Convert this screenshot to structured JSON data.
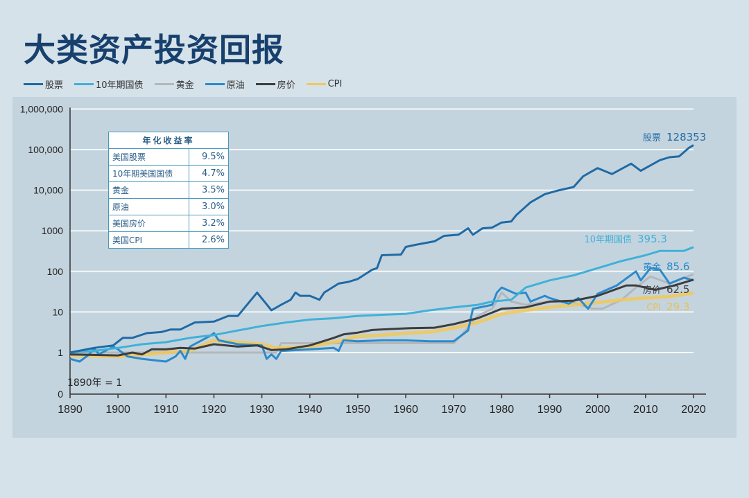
{
  "title": "大类资产投资回报",
  "table": {
    "header": "年化收益率",
    "rows": [
      {
        "label": "美国股票",
        "value": "9.5%"
      },
      {
        "label": "10年期美国国债",
        "value": "4.7%"
      },
      {
        "label": "黄金",
        "value": "3.5%"
      },
      {
        "label": "原油",
        "value": "3.0%"
      },
      {
        "label": "美国房价",
        "value": "3.2%"
      },
      {
        "label": "美国CPI",
        "value": "2.6%"
      }
    ]
  },
  "chart_data": {
    "type": "line",
    "yscale": "log",
    "note": "1890年 = 1",
    "legend_position": "top-left",
    "grid": true,
    "xlim": [
      1890,
      2020
    ],
    "x_ticks": [
      "1890",
      "1900",
      "1910",
      "1920",
      "1930",
      "1940",
      "1950",
      "1960",
      "1970",
      "1980",
      "1990",
      "2000",
      "2010",
      "2020"
    ],
    "y_ticks": [
      "0",
      "1",
      "10",
      "100",
      "1000",
      "10,000",
      "100,000",
      "1,000,000"
    ],
    "series": [
      {
        "name": "股票",
        "color": "#1f6aa5",
        "end_label": "128353",
        "points": [
          [
            1890,
            1
          ],
          [
            1895,
            1.3
          ],
          [
            1899,
            1.5
          ],
          [
            1901,
            2.3
          ],
          [
            1903,
            2.3
          ],
          [
            1906,
            3
          ],
          [
            1909,
            3.2
          ],
          [
            1911,
            3.7
          ],
          [
            1913,
            3.7
          ],
          [
            1916,
            5.5
          ],
          [
            1920,
            5.8
          ],
          [
            1923,
            8
          ],
          [
            1925,
            8
          ],
          [
            1929,
            30
          ],
          [
            1932,
            11
          ],
          [
            1934,
            15
          ],
          [
            1936,
            20
          ],
          [
            1937,
            30
          ],
          [
            1938,
            25
          ],
          [
            1940,
            25
          ],
          [
            1942,
            20
          ],
          [
            1943,
            30
          ],
          [
            1946,
            50
          ],
          [
            1948,
            55
          ],
          [
            1950,
            65
          ],
          [
            1953,
            110
          ],
          [
            1954,
            120
          ],
          [
            1955,
            250
          ],
          [
            1959,
            260
          ],
          [
            1960,
            400
          ],
          [
            1962,
            450
          ],
          [
            1966,
            550
          ],
          [
            1968,
            750
          ],
          [
            1971,
            800
          ],
          [
            1973,
            1150
          ],
          [
            1974,
            800
          ],
          [
            1976,
            1150
          ],
          [
            1978,
            1200
          ],
          [
            1980,
            1600
          ],
          [
            1982,
            1700
          ],
          [
            1983,
            2400
          ],
          [
            1986,
            5000
          ],
          [
            1989,
            8000
          ],
          [
            1992,
            10000
          ],
          [
            1995,
            12000
          ],
          [
            1997,
            22000
          ],
          [
            2000,
            35000
          ],
          [
            2003,
            25000
          ],
          [
            2007,
            45000
          ],
          [
            2009,
            30000
          ],
          [
            2013,
            55000
          ],
          [
            2015,
            65000
          ],
          [
            2017,
            68000
          ],
          [
            2019,
            110000
          ],
          [
            2020,
            128353
          ]
        ]
      },
      {
        "name": "10年期国债",
        "color": "#3fb1d9",
        "end_label": "395.3",
        "points": [
          [
            1890,
            1
          ],
          [
            1895,
            1.1
          ],
          [
            1900,
            1.3
          ],
          [
            1905,
            1.6
          ],
          [
            1910,
            1.8
          ],
          [
            1915,
            2.3
          ],
          [
            1920,
            2.7
          ],
          [
            1925,
            3.5
          ],
          [
            1930,
            4.5
          ],
          [
            1935,
            5.5
          ],
          [
            1940,
            6.5
          ],
          [
            1945,
            7
          ],
          [
            1950,
            8
          ],
          [
            1955,
            8.5
          ],
          [
            1960,
            9
          ],
          [
            1965,
            11
          ],
          [
            1970,
            13
          ],
          [
            1975,
            15
          ],
          [
            1978,
            18
          ],
          [
            1982,
            20
          ],
          [
            1985,
            40
          ],
          [
            1990,
            60
          ],
          [
            1995,
            80
          ],
          [
            2000,
            120
          ],
          [
            2005,
            180
          ],
          [
            2010,
            250
          ],
          [
            2013,
            320
          ],
          [
            2018,
            320
          ],
          [
            2020,
            395.3
          ]
        ]
      },
      {
        "name": "黄金",
        "color": "#b3b7bb",
        "end_label": "85.6",
        "points": [
          [
            1890,
            1
          ],
          [
            1933,
            1
          ],
          [
            1934,
            1.7
          ],
          [
            1968,
            1.7
          ],
          [
            1970,
            1.7
          ],
          [
            1972,
            3
          ],
          [
            1975,
            8
          ],
          [
            1978,
            12
          ],
          [
            1980,
            30
          ],
          [
            1982,
            18
          ],
          [
            1985,
            15
          ],
          [
            1990,
            18
          ],
          [
            1995,
            17
          ],
          [
            1999,
            12
          ],
          [
            2001,
            12
          ],
          [
            2005,
            20
          ],
          [
            2008,
            40
          ],
          [
            2011,
            75
          ],
          [
            2015,
            50
          ],
          [
            2020,
            85.6
          ]
        ]
      },
      {
        "name": "原油",
        "color": "#2a8acb",
        "end_label": "",
        "points": [
          [
            1890,
            0.7
          ],
          [
            1892,
            0.6
          ],
          [
            1894,
            0.9
          ],
          [
            1895,
            1.3
          ],
          [
            1896,
            0.9
          ],
          [
            1899,
            1.4
          ],
          [
            1900,
            1.2
          ],
          [
            1902,
            0.8
          ],
          [
            1905,
            0.7
          ],
          [
            1910,
            0.6
          ],
          [
            1912,
            0.8
          ],
          [
            1913,
            1.1
          ],
          [
            1914,
            0.7
          ],
          [
            1915,
            1.4
          ],
          [
            1919,
            2.5
          ],
          [
            1920,
            3
          ],
          [
            1921,
            2
          ],
          [
            1925,
            1.6
          ],
          [
            1930,
            1.5
          ],
          [
            1931,
            0.7
          ],
          [
            1932,
            0.9
          ],
          [
            1933,
            0.7
          ],
          [
            1934,
            1.1
          ],
          [
            1940,
            1.2
          ],
          [
            1945,
            1.3
          ],
          [
            1946,
            1.1
          ],
          [
            1947,
            2
          ],
          [
            1950,
            1.9
          ],
          [
            1955,
            2
          ],
          [
            1960,
            2
          ],
          [
            1965,
            1.9
          ],
          [
            1970,
            1.9
          ],
          [
            1973,
            3.5
          ],
          [
            1974,
            12
          ],
          [
            1978,
            15
          ],
          [
            1979,
            30
          ],
          [
            1980,
            40
          ],
          [
            1983,
            28
          ],
          [
            1985,
            30
          ],
          [
            1986,
            18
          ],
          [
            1989,
            25
          ],
          [
            1990,
            22
          ],
          [
            1994,
            16
          ],
          [
            1996,
            22
          ],
          [
            1998,
            12
          ],
          [
            2000,
            28
          ],
          [
            2004,
            45
          ],
          [
            2008,
            100
          ],
          [
            2009,
            60
          ],
          [
            2011,
            120
          ],
          [
            2013,
            110
          ],
          [
            2015,
            50
          ],
          [
            2018,
            70
          ],
          [
            2020,
            60
          ]
        ]
      },
      {
        "name": "房价",
        "color": "#3d3d3f",
        "end_label": "62.5",
        "points": [
          [
            1890,
            0.9
          ],
          [
            1900,
            0.85
          ],
          [
            1903,
            1.0
          ],
          [
            1905,
            0.9
          ],
          [
            1907,
            1.2
          ],
          [
            1910,
            1.2
          ],
          [
            1913,
            1.3
          ],
          [
            1916,
            1.25
          ],
          [
            1920,
            1.6
          ],
          [
            1925,
            1.4
          ],
          [
            1929,
            1.5
          ],
          [
            1932,
            1.15
          ],
          [
            1935,
            1.2
          ],
          [
            1940,
            1.5
          ],
          [
            1945,
            2.3
          ],
          [
            1947,
            2.8
          ],
          [
            1950,
            3.1
          ],
          [
            1953,
            3.6
          ],
          [
            1957,
            3.8
          ],
          [
            1961,
            4
          ],
          [
            1966,
            4.1
          ],
          [
            1970,
            5
          ],
          [
            1975,
            7
          ],
          [
            1980,
            12
          ],
          [
            1985,
            13
          ],
          [
            1990,
            18
          ],
          [
            1995,
            19
          ],
          [
            2000,
            25
          ],
          [
            2006,
            45
          ],
          [
            2008,
            45
          ],
          [
            2012,
            35
          ],
          [
            2016,
            45
          ],
          [
            2020,
            62.5
          ]
        ]
      },
      {
        "name": "CPI",
        "color": "#f1c85c",
        "end_label": "29.3",
        "points": [
          [
            1890,
            0.85
          ],
          [
            1900,
            0.8
          ],
          [
            1910,
            1.0
          ],
          [
            1915,
            1.1
          ],
          [
            1920,
            2.0
          ],
          [
            1925,
            1.8
          ],
          [
            1930,
            1.6
          ],
          [
            1933,
            1.3
          ],
          [
            1940,
            1.4
          ],
          [
            1945,
            1.8
          ],
          [
            1950,
            2.5
          ],
          [
            1955,
            2.7
          ],
          [
            1960,
            3
          ],
          [
            1965,
            3.2
          ],
          [
            1970,
            4
          ],
          [
            1975,
            5.5
          ],
          [
            1980,
            9
          ],
          [
            1985,
            11
          ],
          [
            1990,
            13
          ],
          [
            1995,
            15
          ],
          [
            2000,
            17
          ],
          [
            2005,
            20
          ],
          [
            2010,
            22
          ],
          [
            2015,
            24
          ],
          [
            2020,
            29.3
          ]
        ]
      }
    ]
  }
}
